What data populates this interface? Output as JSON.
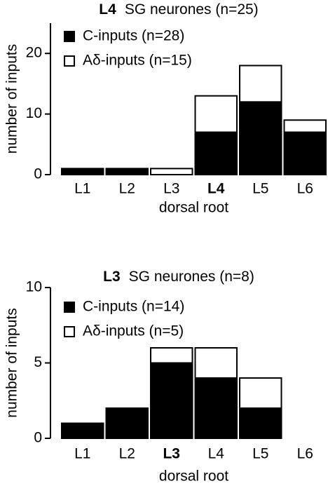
{
  "chart_data": [
    {
      "type": "stacked_bar",
      "title": [
        "L4",
        "SG neurones (n=25)"
      ],
      "categories": [
        "L1",
        "L2",
        "L3",
        "L4",
        "L5",
        "L6"
      ],
      "highlight_index": 3,
      "series": [
        {
          "name": "C-inputs (n=28)",
          "color": "#000000",
          "values": [
            1,
            1,
            0,
            7,
            12,
            7
          ]
        },
        {
          "name": "Aδ-inputs (n=15)",
          "color": "#ffffff",
          "values": [
            0,
            0,
            1,
            6,
            6,
            2
          ]
        }
      ],
      "ylim": [
        0,
        25
      ],
      "yticks": [
        0,
        10,
        20
      ],
      "xlabel": "dorsal root",
      "ylabel": "number of inputs"
    },
    {
      "type": "stacked_bar",
      "title": [
        "L3",
        "SG neurones (n=8)"
      ],
      "categories": [
        "L1",
        "L2",
        "L3",
        "L4",
        "L5",
        "L6"
      ],
      "highlight_index": 2,
      "series": [
        {
          "name": "C-inputs (n=14)",
          "color": "#000000",
          "values": [
            1,
            2,
            5,
            4,
            2,
            0
          ]
        },
        {
          "name": "Aδ-inputs (n=5)",
          "color": "#ffffff",
          "values": [
            0,
            0,
            1,
            2,
            2,
            0
          ]
        }
      ],
      "ylim": [
        0,
        10
      ],
      "yticks": [
        0,
        5,
        10
      ],
      "xlabel": "dorsal root",
      "ylabel": "number of inputs"
    }
  ]
}
